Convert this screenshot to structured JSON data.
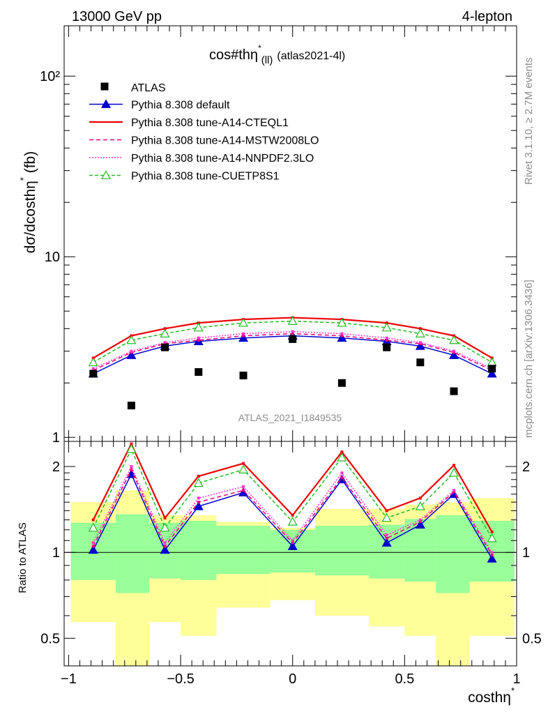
{
  "header": {
    "left": "13000 GeV pp",
    "right": "4-lepton"
  },
  "plot": {
    "title": "cos#thη",
    "title_sup": "*",
    "title_sub": "(ll)",
    "title_tag": "(atlas2021-4l)",
    "watermark": "ATLAS_2021_I1849535",
    "side_text_1": "Rivet 3.1.10, ≥ 2.7M events",
    "side_text_2": "mcplots.cern.ch [arXiv:1306.3436]"
  },
  "axes": {
    "ylabel_main": "dσ/dcosthη",
    "ylabel_main_sup": "*",
    "ylabel_main_unit": " (fb)",
    "ylabel_ratio": "Ratio to ATLAS",
    "xlabel": "costhη",
    "xlabel_sup": "*",
    "main_yticks": [
      {
        "v": 1,
        "t": "1"
      },
      {
        "v": 10,
        "t": "10"
      },
      {
        "v": 100,
        "t": "10²"
      }
    ],
    "ratio_yticks_left": [
      {
        "v": 0.5,
        "t": "0.5"
      },
      {
        "v": 1,
        "t": "1"
      },
      {
        "v": 2,
        "t": "2"
      }
    ],
    "ratio_yticks_right": [
      {
        "v": 0.5,
        "t": "0.5"
      },
      {
        "v": 1,
        "t": "1"
      },
      {
        "v": 2,
        "t": "2"
      }
    ],
    "xticks": [
      {
        "v": -1,
        "t": "−1"
      },
      {
        "v": -0.5,
        "t": "−0.5"
      },
      {
        "v": 0,
        "t": "0"
      },
      {
        "v": 0.5,
        "t": "0.5"
      },
      {
        "v": 1,
        "t": "1"
      }
    ]
  },
  "chart_data": {
    "type": "line",
    "xlim": [
      -1.02,
      1.0
    ],
    "ylim_main": [
      0.95,
      190
    ],
    "ylim_ratio": [
      0.4,
      2.45
    ],
    "main_log_scale": true,
    "ratio_log_scale": true,
    "x": [
      -0.89,
      -0.72,
      -0.57,
      -0.42,
      -0.22,
      0.0,
      0.22,
      0.42,
      0.57,
      0.72,
      0.89
    ],
    "bin_edges": [
      -0.99,
      -0.79,
      -0.64,
      -0.5,
      -0.34,
      -0.1,
      0.1,
      0.34,
      0.5,
      0.64,
      0.79,
      0.99
    ],
    "data": {
      "name": "ATLAS",
      "values": [
        2.25,
        1.5,
        3.15,
        2.3,
        2.2,
        3.5,
        2.0,
        3.15,
        2.6,
        1.8,
        2.4
      ]
    },
    "series": [
      {
        "name": "Pythia 8.308 default",
        "color": "#0000cc",
        "dash": "",
        "marker": "triangle-filled",
        "values": [
          2.25,
          2.85,
          3.2,
          3.4,
          3.55,
          3.65,
          3.55,
          3.4,
          3.2,
          2.85,
          2.25
        ]
      },
      {
        "name": "Pythia 8.308 tune-A14-CTEQL1",
        "color": "#ee0000",
        "dash": "",
        "marker": "none",
        "values": [
          2.75,
          3.65,
          4.0,
          4.3,
          4.5,
          4.6,
          4.5,
          4.3,
          4.0,
          3.65,
          2.75
        ]
      },
      {
        "name": "Pythia 8.308 tune-A14-MSTW2008LO",
        "color": "#e8007a",
        "dash": "6,4",
        "marker": "none",
        "values": [
          2.35,
          2.95,
          3.3,
          3.45,
          3.65,
          3.75,
          3.65,
          3.45,
          3.3,
          2.95,
          2.35
        ]
      },
      {
        "name": "Pythia 8.308 tune-A14-NNPDF2.3LO",
        "color": "#ff33cc",
        "dash": "2,2",
        "marker": "none",
        "values": [
          2.4,
          3.0,
          3.35,
          3.55,
          3.75,
          3.85,
          3.75,
          3.55,
          3.35,
          3.0,
          2.4
        ]
      },
      {
        "name": "Pythia 8.308 tune-CUETP8S1",
        "color": "#22bb22",
        "dash": "5,3",
        "marker": "triangle-open",
        "values": [
          2.6,
          3.45,
          3.75,
          4.05,
          4.3,
          4.4,
          4.3,
          4.05,
          3.75,
          3.45,
          2.6
        ]
      }
    ],
    "ratio_series": [
      [
        1.02,
        1.88,
        1.02,
        1.45,
        1.62,
        1.05,
        1.8,
        1.08,
        1.25,
        1.6,
        0.95
      ],
      [
        1.3,
        2.4,
        1.32,
        1.85,
        2.05,
        1.35,
        2.25,
        1.4,
        1.55,
        2.02,
        1.18
      ],
      [
        1.05,
        1.95,
        1.05,
        1.5,
        1.65,
        1.08,
        1.83,
        1.12,
        1.28,
        1.63,
        0.98
      ],
      [
        1.08,
        2.0,
        1.08,
        1.55,
        1.7,
        1.1,
        1.9,
        1.15,
        1.3,
        1.65,
        1.0
      ],
      [
        1.22,
        2.3,
        1.22,
        1.75,
        1.95,
        1.28,
        2.15,
        1.32,
        1.45,
        1.9,
        1.12
      ]
    ],
    "bands": {
      "green": [
        [
          0.8,
          1.27
        ],
        [
          0.72,
          1.36
        ],
        [
          0.81,
          1.27
        ],
        [
          0.8,
          1.29
        ],
        [
          0.84,
          1.24
        ],
        [
          0.85,
          1.2
        ],
        [
          0.83,
          1.24
        ],
        [
          0.81,
          1.25
        ],
        [
          0.79,
          1.31
        ],
        [
          0.72,
          1.35
        ],
        [
          0.79,
          1.29
        ]
      ],
      "yellow": [
        [
          0.57,
          1.5
        ],
        [
          0.35,
          1.65
        ],
        [
          0.57,
          1.35
        ],
        [
          0.51,
          1.35
        ],
        [
          0.64,
          1.28
        ],
        [
          0.68,
          1.22
        ],
        [
          0.6,
          1.42
        ],
        [
          0.55,
          1.42
        ],
        [
          0.51,
          1.47
        ],
        [
          0.35,
          1.5
        ],
        [
          0.51,
          1.55
        ]
      ]
    }
  }
}
